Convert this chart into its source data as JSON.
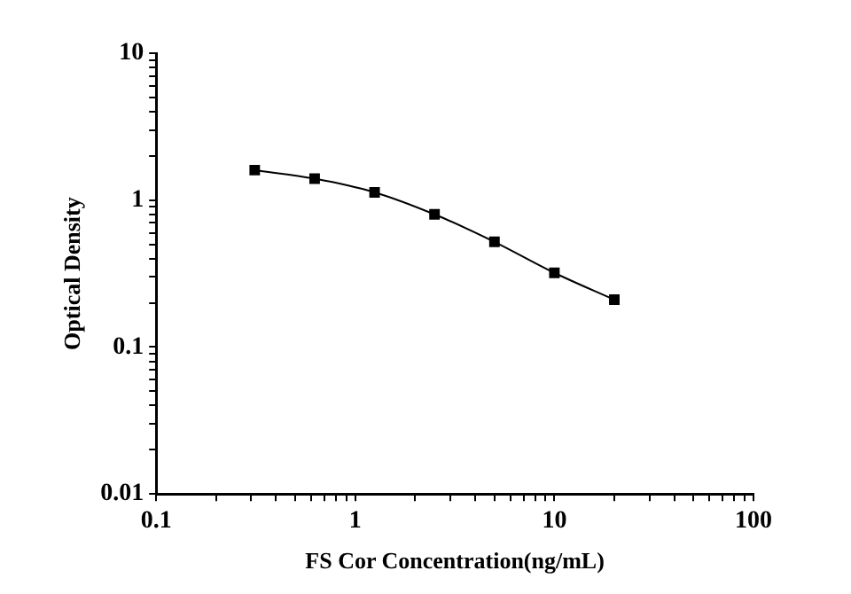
{
  "chart_data": {
    "type": "line",
    "xlabel": "FS Cor Concentration(ng/mL)",
    "ylabel": "Optical Density",
    "x": [
      0.3125,
      0.625,
      1.25,
      2.5,
      5,
      10,
      20
    ],
    "series": [
      {
        "color": "#000000",
        "values": [
          1.6,
          1.4,
          1.13,
          0.8,
          0.52,
          0.32,
          0.21
        ]
      }
    ],
    "log": "xy",
    "xlim": [
      0.1,
      100
    ],
    "ylim": [
      0.01,
      10
    ],
    "xticks": [
      0.1,
      {
        "value": 0.2,
        "label": null
      },
      {
        "value": 0.3,
        "label": null
      },
      {
        "value": 0.4,
        "label": null
      },
      {
        "value": 0.5,
        "label": null
      },
      {
        "value": 0.6,
        "label": null
      },
      {
        "value": 0.7,
        "label": null
      },
      {
        "value": 0.8,
        "label": null
      },
      {
        "value": 0.9,
        "label": null
      },
      1,
      {
        "value": 2,
        "label": null
      },
      {
        "value": 3,
        "label": null
      },
      {
        "value": 4,
        "label": null
      },
      {
        "value": 5,
        "label": null
      },
      {
        "value": 6,
        "label": null
      },
      {
        "value": 7,
        "label": null
      },
      {
        "value": 8,
        "label": null
      },
      {
        "value": 9,
        "label": null
      },
      10,
      {
        "value": 20,
        "label": null
      },
      {
        "value": 30,
        "label": null
      },
      {
        "value": 40,
        "label": null
      },
      {
        "value": 50,
        "label": null
      },
      {
        "value": 60,
        "label": null
      },
      {
        "value": 70,
        "label": null
      },
      {
        "value": 80,
        "label": null
      },
      {
        "value": 90,
        "label": null
      },
      100
    ],
    "yticks": [
      {
        "value": 0.01,
        "label": "0.01"
      },
      {
        "value": 0.02,
        "label": null
      },
      {
        "value": 0.03,
        "label": null
      },
      {
        "value": 0.04,
        "label": null
      },
      {
        "value": 0.05,
        "label": null
      },
      {
        "value": 0.06,
        "label": null
      },
      {
        "value": 0.07,
        "label": null
      },
      {
        "value": 0.08,
        "label": null
      },
      {
        "value": 0.09,
        "label": null
      },
      0.1,
      {
        "value": 0.2,
        "label": null
      },
      {
        "value": 0.3,
        "label": null
      },
      {
        "value": 0.4,
        "label": null
      },
      {
        "value": 0.5,
        "label": null
      },
      {
        "value": 0.6,
        "label": null
      },
      {
        "value": 0.7,
        "label": null
      },
      {
        "value": 0.8,
        "label": null
      },
      {
        "value": 0.9,
        "label": null
      },
      1,
      {
        "value": 2,
        "label": null
      },
      {
        "value": 3,
        "label": null
      },
      {
        "value": 4,
        "label": null
      },
      {
        "value": 5,
        "label": null
      },
      {
        "value": 6,
        "label": null
      },
      {
        "value": 7,
        "label": null
      },
      {
        "value": 8,
        "label": null
      },
      {
        "value": 9,
        "label": null
      },
      10
    ],
    "grid": false,
    "legend": false,
    "marker": "square",
    "line_style": "solid"
  }
}
